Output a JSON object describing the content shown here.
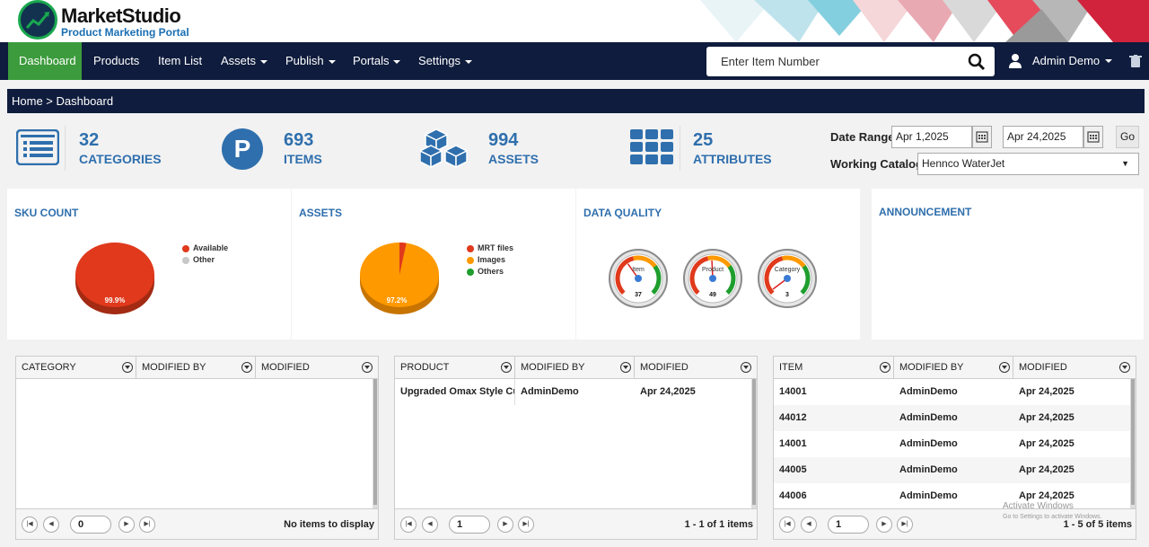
{
  "brand": {
    "name": "MarketStudio",
    "tagline": "Product Marketing Portal"
  },
  "nav": {
    "items": [
      {
        "label": "Dashboard",
        "active": true
      },
      {
        "label": "Products"
      },
      {
        "label": "Item List"
      },
      {
        "label": "Assets",
        "dropdown": true
      },
      {
        "label": "Publish",
        "dropdown": true
      },
      {
        "label": "Portals",
        "dropdown": true
      },
      {
        "label": "Settings",
        "dropdown": true
      }
    ],
    "search_placeholder": "Enter Item Number",
    "user": "Admin Demo"
  },
  "breadcrumb": "Home > Dashboard",
  "stats": [
    {
      "value": "32",
      "label": "CATEGORIES",
      "icon": "list-icon"
    },
    {
      "value": "693",
      "label": "ITEMS",
      "icon": "p-circle-icon"
    },
    {
      "value": "994",
      "label": "ASSETS",
      "icon": "cubes-icon"
    },
    {
      "value": "25",
      "label": "ATTRIBUTES",
      "icon": "grid-icon"
    }
  ],
  "filters": {
    "date_range_label": "Date Range",
    "date_from": "Apr 1,2025",
    "date_to": "Apr 24,2025",
    "go_label": "Go",
    "catalog_label": "Working Catalog",
    "catalog_value": "Hennco WaterJet"
  },
  "panels": {
    "sku": {
      "title": "SKU COUNT",
      "legend": [
        "Available",
        "Other"
      ],
      "slice_label": "99.9%"
    },
    "assets": {
      "title": "ASSETS",
      "legend": [
        "MRT files",
        "Images",
        "Others"
      ],
      "slice_label": "97.2%"
    },
    "quality": {
      "title": "DATA QUALITY",
      "gauges": [
        {
          "label": "Item",
          "value": "37"
        },
        {
          "label": "Product",
          "value": "49"
        },
        {
          "label": "Category",
          "value": "3"
        }
      ]
    },
    "announcement": {
      "title": "ANNOUNCEMENT"
    }
  },
  "chart_data": [
    {
      "type": "pie",
      "title": "SKU COUNT",
      "series": [
        {
          "name": "Available",
          "value": 99.9
        },
        {
          "name": "Other",
          "value": 0.1
        }
      ],
      "colors": [
        "#e0391c",
        "#c8c8c8"
      ]
    },
    {
      "type": "pie",
      "title": "ASSETS",
      "series": [
        {
          "name": "MRT files",
          "value": 2.8
        },
        {
          "name": "Images",
          "value": 97.2
        },
        {
          "name": "Others",
          "value": 0
        }
      ],
      "colors": [
        "#e0391c",
        "#ff9900",
        "#1f9e2e"
      ]
    }
  ],
  "grids": {
    "categories": {
      "columns": [
        "CATEGORY",
        "MODIFIED BY",
        "MODIFIED"
      ],
      "rows": [],
      "page": "0",
      "info": "No items to display"
    },
    "products": {
      "columns": [
        "PRODUCT",
        "MODIFIED BY",
        "MODIFIED"
      ],
      "rows": [
        [
          "Upgraded Omax Style Cutting",
          "AdminDemo",
          "Apr 24,2025"
        ]
      ],
      "page": "1",
      "info": "1 - 1 of 1 items"
    },
    "items": {
      "columns": [
        "ITEM",
        "MODIFIED BY",
        "MODIFIED"
      ],
      "rows": [
        [
          "14001",
          "AdminDemo",
          "Apr 24,2025"
        ],
        [
          "44012",
          "AdminDemo",
          "Apr 24,2025"
        ],
        [
          "14001",
          "AdminDemo",
          "Apr 24,2025"
        ],
        [
          "44005",
          "AdminDemo",
          "Apr 24,2025"
        ],
        [
          "44006",
          "AdminDemo",
          "Apr 24,2025"
        ]
      ],
      "page": "1",
      "info": "1 - 5 of 5 items"
    }
  },
  "watermark": {
    "line1": "Activate Windows",
    "line2": "Go to Settings to activate Windows."
  },
  "colors": {
    "nav_bg": "#0f1c3d",
    "active": "#3c9b3c",
    "accent": "#2f6fad"
  }
}
